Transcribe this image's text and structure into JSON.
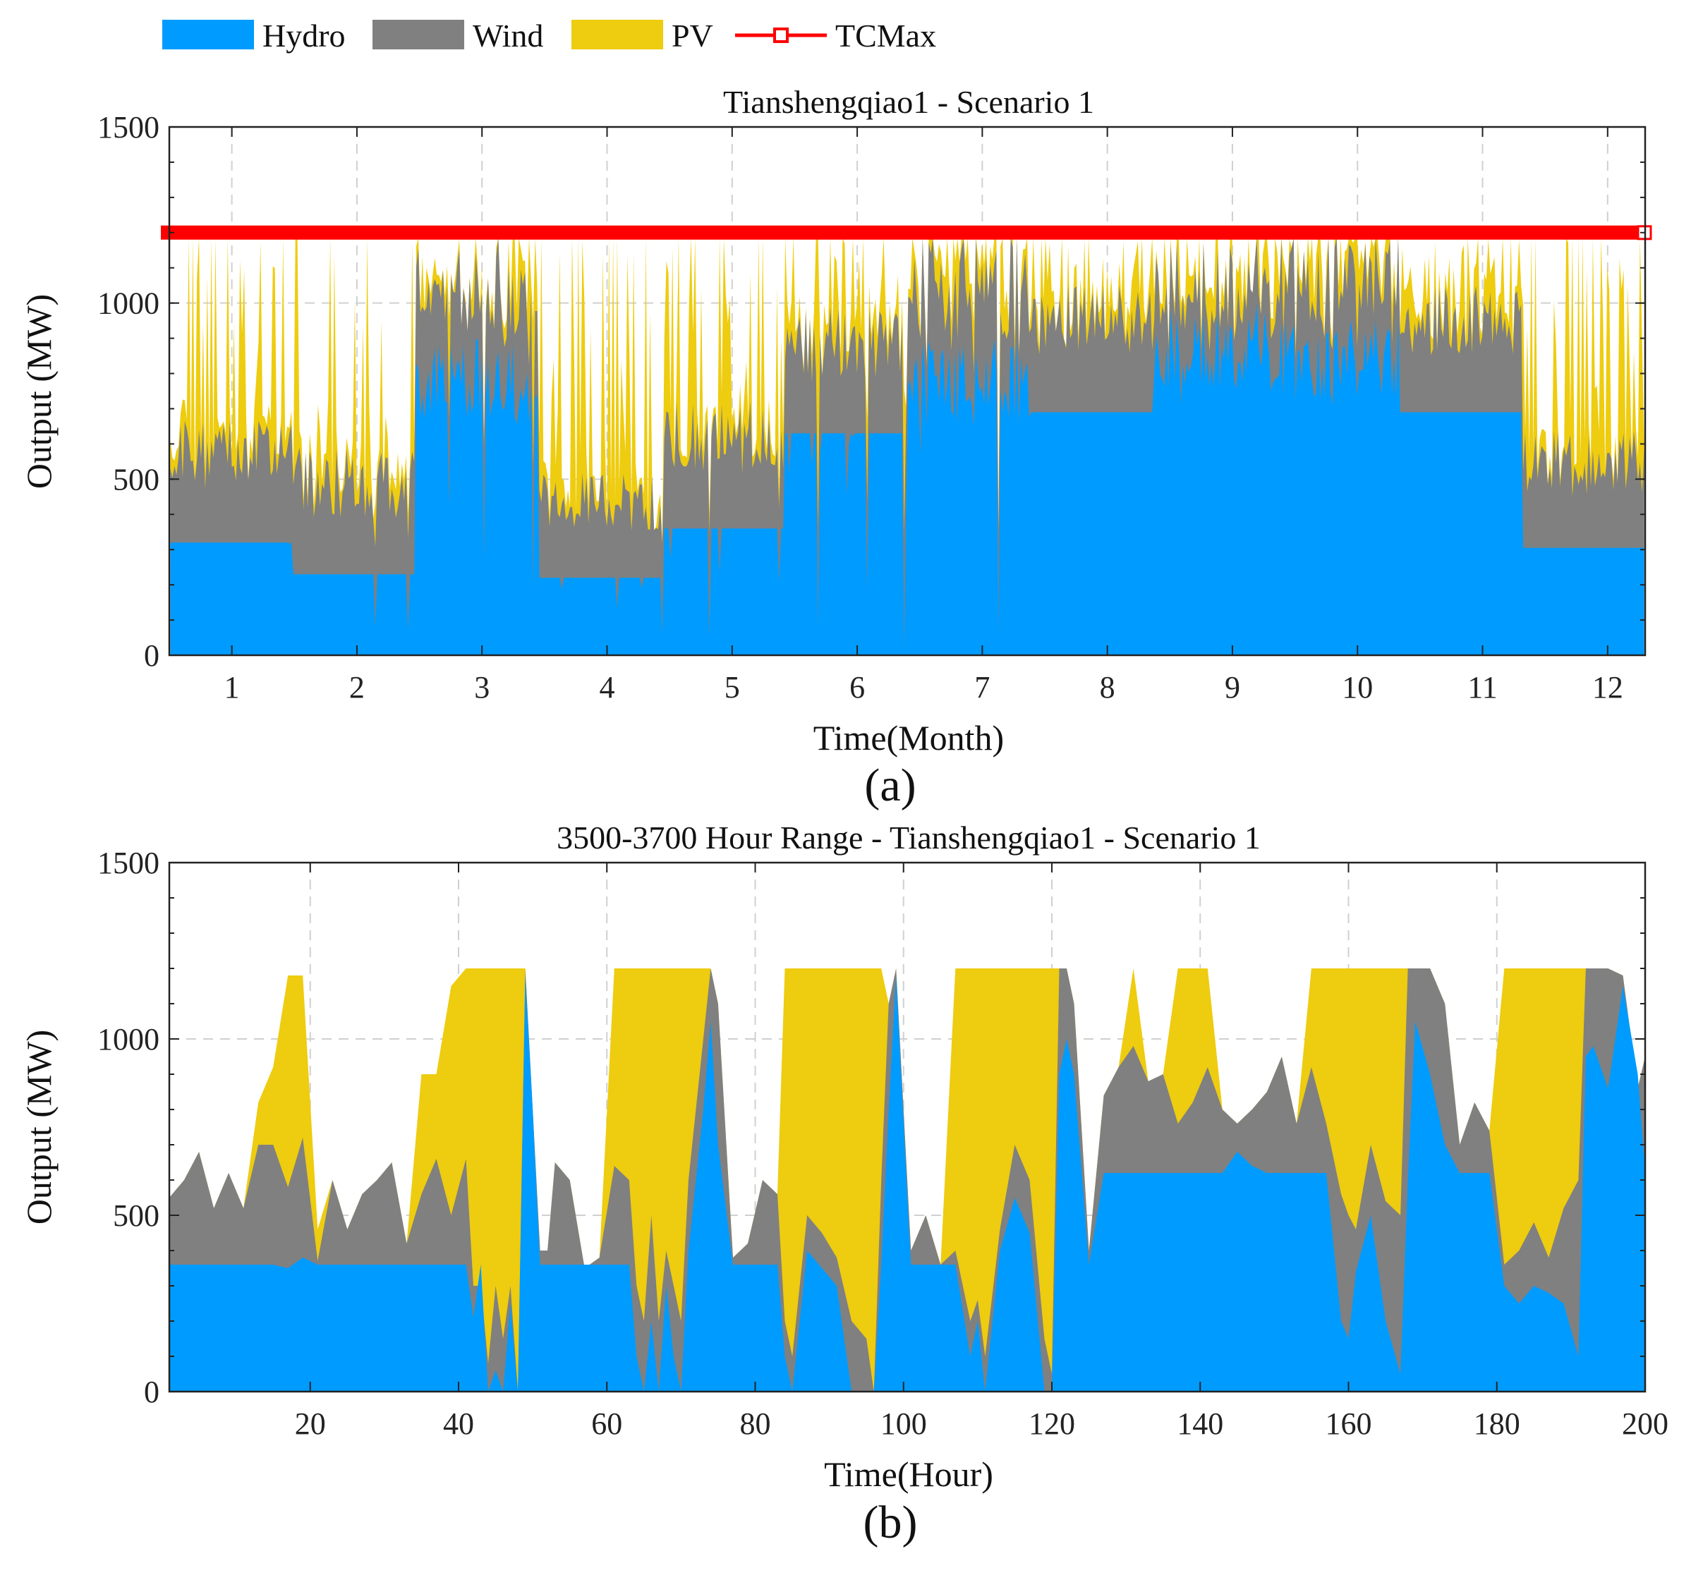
{
  "colors": {
    "hydro": "#009BFF",
    "wind": "#808080",
    "pv": "#EECC0F",
    "tcmax": "#FF0000"
  },
  "legend": {
    "items": [
      {
        "key": "hydro",
        "label": "Hydro",
        "kind": "patch"
      },
      {
        "key": "wind",
        "label": "Wind",
        "kind": "patch"
      },
      {
        "key": "pv",
        "label": "PV",
        "kind": "patch"
      },
      {
        "key": "tcmax",
        "label": "TCMax",
        "kind": "line-square"
      }
    ]
  },
  "chart_data": [
    {
      "type": "area",
      "stacked": true,
      "panel_label": "(a)",
      "title": "Tianshengqiao1 - Scenario 1",
      "xlabel": "Time(Month)",
      "ylabel": "Output (MW)",
      "xlim": [
        0.5,
        12.3
      ],
      "ylim": [
        0,
        1500
      ],
      "xticks": [
        1,
        2,
        3,
        4,
        5,
        6,
        7,
        8,
        9,
        10,
        11,
        12
      ],
      "yticks": [
        0,
        500,
        1000,
        1500
      ],
      "grid": true,
      "tcmax": 1200,
      "monthly": [
        {
          "month": 1,
          "hydro_base": 320,
          "wind_mean": 250,
          "pv_peak_max": 1180
        },
        {
          "month": 2,
          "hydro_base": 230,
          "wind_mean": 260,
          "pv_peak_max": 1180
        },
        {
          "month": 3,
          "hydro_base": 900,
          "wind_mean": 250,
          "pv_peak_max": 1180
        },
        {
          "month": 4,
          "hydro_base": 220,
          "wind_mean": 220,
          "pv_peak_max": 1180
        },
        {
          "month": 5,
          "hydro_base": 360,
          "wind_mean": 260,
          "pv_peak_max": 1180
        },
        {
          "month": 6,
          "hydro_base": 630,
          "wind_mean": 260,
          "pv_peak_max": 1180
        },
        {
          "month": 7,
          "hydro_base": 900,
          "wind_mean": 250,
          "pv_peak_max": 1180
        },
        {
          "month": 8,
          "hydro_base": 690,
          "wind_mean": 260,
          "pv_peak_max": 1180
        },
        {
          "month": 9,
          "hydro_base": 1000,
          "wind_mean": 160,
          "pv_peak_max": 1180
        },
        {
          "month": 10,
          "hydro_base": 960,
          "wind_mean": 200,
          "pv_peak_max": 1180
        },
        {
          "month": 11,
          "hydro_base": 690,
          "wind_mean": 260,
          "pv_peak_max": 1180
        },
        {
          "month": 12,
          "hydro_base": 305,
          "wind_mean": 240,
          "pv_peak_max": 1180
        }
      ]
    },
    {
      "type": "area",
      "stacked": true,
      "panel_label": "(b)",
      "title": "3500-3700 Hour Range - Tianshengqiao1 - Scenario 1",
      "xlabel": "Time(Hour)",
      "ylabel": "Output (MW)",
      "xlim": [
        1,
        200
      ],
      "ylim": [
        0,
        1500
      ],
      "xticks": [
        20,
        40,
        60,
        80,
        100,
        120,
        140,
        160,
        180,
        200
      ],
      "yticks": [
        0,
        500,
        1000,
        1500
      ],
      "grid": true,
      "x": [
        1,
        3,
        5,
        7,
        9,
        11,
        13,
        15,
        17,
        19,
        21,
        23,
        25,
        27,
        29,
        31,
        33,
        35,
        37,
        39,
        41,
        42,
        43,
        44,
        45,
        46,
        47,
        48,
        49,
        50,
        51,
        52,
        53,
        55,
        57,
        59,
        61,
        63,
        64,
        65,
        66,
        67,
        68,
        69,
        70,
        71,
        72,
        73,
        74,
        75,
        77,
        79,
        81,
        83,
        84,
        85,
        87,
        89,
        91,
        93,
        95,
        96,
        97,
        98,
        99,
        101,
        103,
        105,
        107,
        109,
        110,
        111,
        113,
        115,
        117,
        119,
        120,
        121,
        122,
        123,
        125,
        127,
        129,
        131,
        133,
        135,
        137,
        139,
        141,
        143,
        145,
        147,
        149,
        151,
        153,
        155,
        157,
        159,
        160,
        161,
        163,
        165,
        167,
        168,
        169,
        171,
        173,
        175,
        177,
        179,
        181,
        183,
        185,
        187,
        189,
        191,
        192,
        193,
        195,
        197,
        199,
        200
      ],
      "series": [
        {
          "name": "Hydro",
          "values": [
            360,
            360,
            360,
            360,
            360,
            360,
            360,
            360,
            350,
            380,
            360,
            360,
            360,
            360,
            360,
            360,
            360,
            360,
            360,
            360,
            360,
            210,
            360,
            0,
            60,
            0,
            250,
            0,
            1180,
            800,
            360,
            360,
            360,
            360,
            360,
            360,
            360,
            360,
            100,
            0,
            200,
            0,
            300,
            100,
            0,
            400,
            600,
            800,
            1050,
            700,
            360,
            360,
            360,
            360,
            100,
            0,
            400,
            350,
            300,
            0,
            0,
            0,
            360,
            800,
            1180,
            360,
            360,
            360,
            360,
            100,
            200,
            0,
            400,
            550,
            450,
            0,
            0,
            900,
            1000,
            900,
            360,
            620,
            620,
            620,
            620,
            620,
            620,
            620,
            620,
            620,
            680,
            640,
            620,
            620,
            620,
            620,
            620,
            200,
            150,
            340,
            500,
            200,
            50,
            600,
            1050,
            900,
            700,
            620,
            620,
            620,
            300,
            250,
            300,
            280,
            250,
            100,
            950,
            980,
            860,
            1150,
            900,
            620
          ],
          "stack_top": [
            550,
            600,
            680,
            520,
            620,
            520,
            700,
            700,
            580,
            720,
            370,
            600,
            460,
            560,
            600,
            650,
            420,
            560,
            660,
            500,
            660,
            300,
            300,
            80,
            300,
            150,
            300,
            0,
            1200,
            800,
            400,
            400,
            650,
            600,
            350,
            380,
            640,
            600,
            300,
            200,
            500,
            200,
            400,
            300,
            200,
            600,
            800,
            1000,
            1200,
            1100,
            380,
            420,
            600,
            560,
            200,
            100,
            500,
            450,
            380,
            200,
            150,
            0,
            600,
            1100,
            1200,
            400,
            500,
            360,
            400,
            200,
            260,
            100,
            460,
            700,
            600,
            150,
            50,
            1200,
            1200,
            1100,
            400,
            840,
            920,
            980,
            880,
            900,
            760,
            820,
            920,
            800,
            760,
            800,
            850,
            950,
            760,
            920,
            760,
            560,
            500,
            460,
            700,
            540,
            500,
            1200,
            1200,
            1200,
            1100,
            700,
            820,
            740,
            360,
            400,
            480,
            380,
            520,
            600,
            1200,
            1200,
            1200,
            1180,
            860,
            950
          ]
        },
        {
          "name": "PV",
          "values": [
            0,
            0,
            0,
            0,
            0,
            0,
            0,
            0,
            0,
            0,
            0,
            0,
            0,
            0,
            0,
            0,
            0,
            0,
            0,
            0,
            0,
            0,
            0,
            0,
            0,
            0,
            0,
            0,
            0,
            0,
            0,
            0,
            0,
            0,
            0,
            0,
            0,
            0,
            0,
            0,
            0,
            0,
            0,
            0,
            0,
            0,
            0,
            0,
            0,
            0,
            0,
            0,
            0,
            0,
            0,
            0,
            0,
            0,
            0,
            0,
            0,
            0,
            0,
            0,
            0,
            0,
            0,
            0,
            0,
            0,
            0,
            0,
            0,
            0,
            0,
            0,
            0,
            0,
            0,
            0,
            0,
            0,
            0,
            0,
            0,
            0,
            0,
            0,
            0,
            0,
            0,
            0,
            0,
            0,
            0,
            0,
            0,
            0,
            0,
            0,
            0,
            0,
            0,
            0,
            0,
            0,
            0,
            0,
            0,
            0,
            0,
            0,
            0,
            0,
            0,
            0,
            0,
            0,
            0,
            0,
            0,
            0
          ],
          "stack_top": [
            550,
            600,
            680,
            520,
            620,
            520,
            820,
            920,
            1180,
            1180,
            460,
            600,
            460,
            560,
            600,
            650,
            420,
            900,
            900,
            1150,
            1200,
            1200,
            1200,
            1200,
            1200,
            1200,
            1200,
            1200,
            1200,
            800,
            400,
            400,
            650,
            600,
            350,
            380,
            1200,
            1200,
            1200,
            1200,
            1200,
            1200,
            1200,
            1200,
            1200,
            1200,
            1200,
            1200,
            1200,
            1100,
            380,
            420,
            600,
            560,
            1200,
            1200,
            1200,
            1200,
            1200,
            1200,
            1200,
            1200,
            1200,
            1100,
            1200,
            400,
            500,
            360,
            1200,
            1200,
            1200,
            1200,
            1200,
            1200,
            1200,
            1200,
            1200,
            1200,
            1200,
            1100,
            400,
            840,
            920,
            1200,
            880,
            900,
            1200,
            1200,
            1200,
            800,
            760,
            800,
            850,
            950,
            760,
            1200,
            1200,
            1200,
            1200,
            1200,
            1200,
            1200,
            1200,
            1200,
            1200,
            1200,
            1100,
            700,
            820,
            740,
            1200,
            1200,
            1200,
            1200,
            1200,
            1200,
            1200,
            1200,
            1200,
            1180,
            860,
            950
          ]
        }
      ]
    }
  ]
}
